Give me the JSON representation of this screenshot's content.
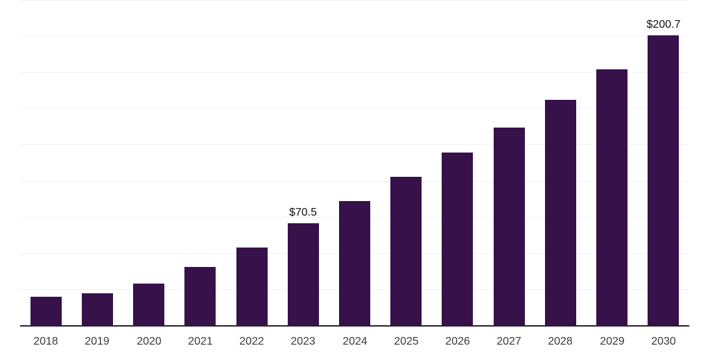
{
  "chart_data": {
    "type": "bar",
    "title": "",
    "xlabel": "",
    "ylabel": "",
    "categories": [
      "2018",
      "2019",
      "2020",
      "2021",
      "2022",
      "2023",
      "2024",
      "2025",
      "2026",
      "2027",
      "2028",
      "2029",
      "2030"
    ],
    "values": [
      19.5,
      22.2,
      29.0,
      40.2,
      53.6,
      70.5,
      86.1,
      102.5,
      119.3,
      136.7,
      155.8,
      177.0,
      200.7
    ],
    "value_labels": {
      "2023": "$70.5",
      "2030": "$200.7"
    },
    "ylim": [
      0,
      225
    ],
    "grid_interval": 25,
    "grid": true,
    "legend": false,
    "y_axis_ticks_visible": false
  },
  "style": {
    "bar_color": "#36114a",
    "axis_color": "#26262e",
    "grid_color": "#f1f1f4",
    "tick_label_color": "#3a3a3a",
    "value_label_color": "#121212",
    "background": "#ffffff"
  }
}
